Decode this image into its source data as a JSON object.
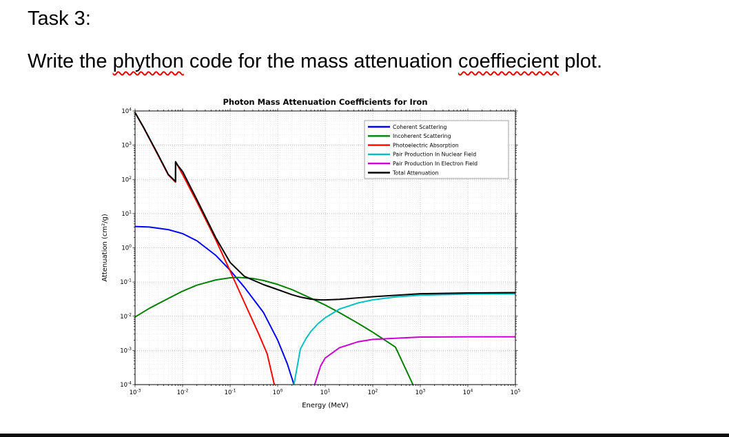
{
  "document": {
    "heading": "Task 3:",
    "instruction_parts": [
      {
        "text": "Write the ",
        "misspelled": false
      },
      {
        "text": "phython",
        "misspelled": true
      },
      {
        "text": " code for the mass attenuation ",
        "misspelled": false
      },
      {
        "text": "coeffiecient",
        "misspelled": true
      },
      {
        "text": " plot.",
        "misspelled": false
      }
    ],
    "spellcheck_color": "#e40000"
  },
  "chart_data": {
    "type": "line",
    "title": "Photon Mass Attenuation Coefficients for Iron",
    "xlabel": "Energy (MeV)",
    "ylabel": "Attenuation (cm²/g)",
    "x_scale": "log",
    "y_scale": "log",
    "xlim": [
      0.001,
      100000
    ],
    "ylim": [
      0.0001,
      10000
    ],
    "x_tick_exponents": [
      -3,
      -2,
      -1,
      0,
      1,
      2,
      3,
      4,
      5
    ],
    "y_tick_exponents": [
      -4,
      -3,
      -2,
      -1,
      0,
      1,
      2,
      3,
      4
    ],
    "grid": true,
    "legend_position": "upper right",
    "series": [
      {
        "id": "coherent",
        "name": "Coherent Scattering",
        "color": "#0000ff",
        "points": [
          [
            0.001,
            4.2
          ],
          [
            0.002,
            4.05
          ],
          [
            0.005,
            3.4
          ],
          [
            0.01,
            2.6
          ],
          [
            0.02,
            1.6
          ],
          [
            0.05,
            0.6
          ],
          [
            0.1,
            0.22
          ],
          [
            0.2,
            0.07
          ],
          [
            0.5,
            0.013
          ],
          [
            1,
            0.002
          ],
          [
            1.6,
            0.0004
          ],
          [
            2.2,
            0.0001
          ]
        ]
      },
      {
        "id": "incoherent",
        "name": "Incoherent Scattering",
        "color": "#008000",
        "points": [
          [
            0.001,
            0.0095
          ],
          [
            0.002,
            0.017
          ],
          [
            0.005,
            0.033
          ],
          [
            0.01,
            0.054
          ],
          [
            0.02,
            0.081
          ],
          [
            0.05,
            0.115
          ],
          [
            0.1,
            0.133
          ],
          [
            0.15,
            0.136
          ],
          [
            0.3,
            0.127
          ],
          [
            0.5,
            0.111
          ],
          [
            1,
            0.085
          ],
          [
            2,
            0.06
          ],
          [
            5,
            0.0335
          ],
          [
            10,
            0.0212
          ],
          [
            20,
            0.0127
          ],
          [
            50,
            0.0061
          ],
          [
            100,
            0.0034
          ],
          [
            300,
            0.00125
          ],
          [
            700,
            0.0001
          ]
        ]
      },
      {
        "id": "photoelectric",
        "name": "Photoelectric Absorption",
        "color": "#ff0000",
        "points": [
          [
            0.001,
            9000
          ],
          [
            0.0015,
            3300
          ],
          [
            0.002,
            1550
          ],
          [
            0.003,
            530
          ],
          [
            0.005,
            135
          ],
          [
            0.0071,
            83
          ],
          [
            0.00711,
            320
          ],
          [
            0.008,
            245
          ],
          [
            0.01,
            139
          ],
          [
            0.02,
            22
          ],
          [
            0.05,
            1.7
          ],
          [
            0.1,
            0.21
          ],
          [
            0.2,
            0.025
          ],
          [
            0.4,
            0.003
          ],
          [
            0.6,
            0.0008
          ],
          [
            0.85,
            0.0001
          ]
        ]
      },
      {
        "id": "pair-nuclear",
        "name": "Pair Production In Nuclear Field",
        "color": "#00bfbf",
        "points": [
          [
            2.2,
            0.0001
          ],
          [
            3,
            0.0011
          ],
          [
            4,
            0.0023
          ],
          [
            5,
            0.0036
          ],
          [
            7,
            0.006
          ],
          [
            10,
            0.009
          ],
          [
            20,
            0.0162
          ],
          [
            50,
            0.0246
          ],
          [
            100,
            0.03
          ],
          [
            300,
            0.0366
          ],
          [
            1000,
            0.0412
          ],
          [
            10000,
            0.0443
          ],
          [
            100000,
            0.045
          ]
        ]
      },
      {
        "id": "pair-electron",
        "name": "Pair Production In Electron Field",
        "color": "#cc00cc",
        "points": [
          [
            6,
            0.0001
          ],
          [
            8,
            0.00035
          ],
          [
            10,
            0.0006
          ],
          [
            20,
            0.0012
          ],
          [
            50,
            0.0018
          ],
          [
            100,
            0.0021
          ],
          [
            1000,
            0.00245
          ],
          [
            10000,
            0.0025
          ],
          [
            100000,
            0.0025
          ]
        ]
      },
      {
        "id": "total",
        "name": "Total Attenuation",
        "color": "#000000",
        "points": [
          [
            0.001,
            9000
          ],
          [
            0.0015,
            3400
          ],
          [
            0.002,
            1600
          ],
          [
            0.003,
            555
          ],
          [
            0.005,
            140
          ],
          [
            0.0071,
            87
          ],
          [
            0.00711,
            330
          ],
          [
            0.008,
            252
          ],
          [
            0.01,
            171
          ],
          [
            0.02,
            25.7
          ],
          [
            0.05,
            1.96
          ],
          [
            0.1,
            0.372
          ],
          [
            0.2,
            0.146
          ],
          [
            0.5,
            0.084
          ],
          [
            1,
            0.06
          ],
          [
            2,
            0.0425
          ],
          [
            3,
            0.0362
          ],
          [
            5,
            0.0315
          ],
          [
            8,
            0.03
          ],
          [
            10,
            0.0299
          ],
          [
            20,
            0.0312
          ],
          [
            50,
            0.0345
          ],
          [
            100,
            0.037
          ],
          [
            1000,
            0.0454
          ],
          [
            10000,
            0.048
          ],
          [
            100000,
            0.049
          ]
        ]
      }
    ]
  }
}
